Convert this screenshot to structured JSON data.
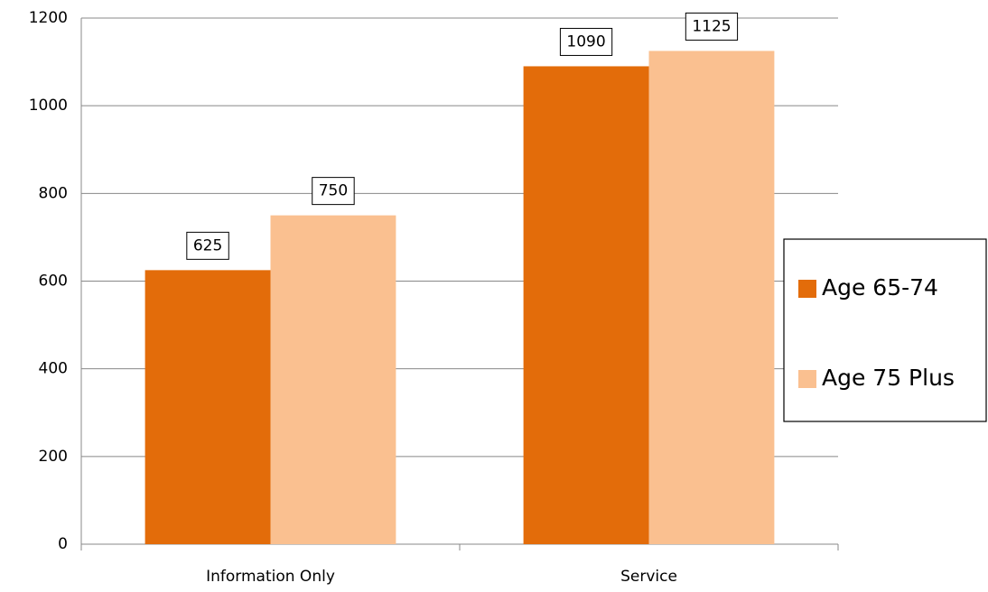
{
  "chart_data": {
    "type": "bar",
    "categories": [
      "Information Only",
      "Service"
    ],
    "series": [
      {
        "name": "Age 65-74",
        "color": "#e36c0a",
        "values": [
          625,
          1090
        ]
      },
      {
        "name": "Age 75 Plus",
        "color": "#fac090",
        "values": [
          750,
          1125
        ]
      }
    ],
    "ylim": [
      0,
      1200
    ],
    "yticks": [
      0,
      200,
      400,
      600,
      800,
      1000,
      1200
    ],
    "grid": true,
    "legend": "right",
    "data_labels": true
  }
}
